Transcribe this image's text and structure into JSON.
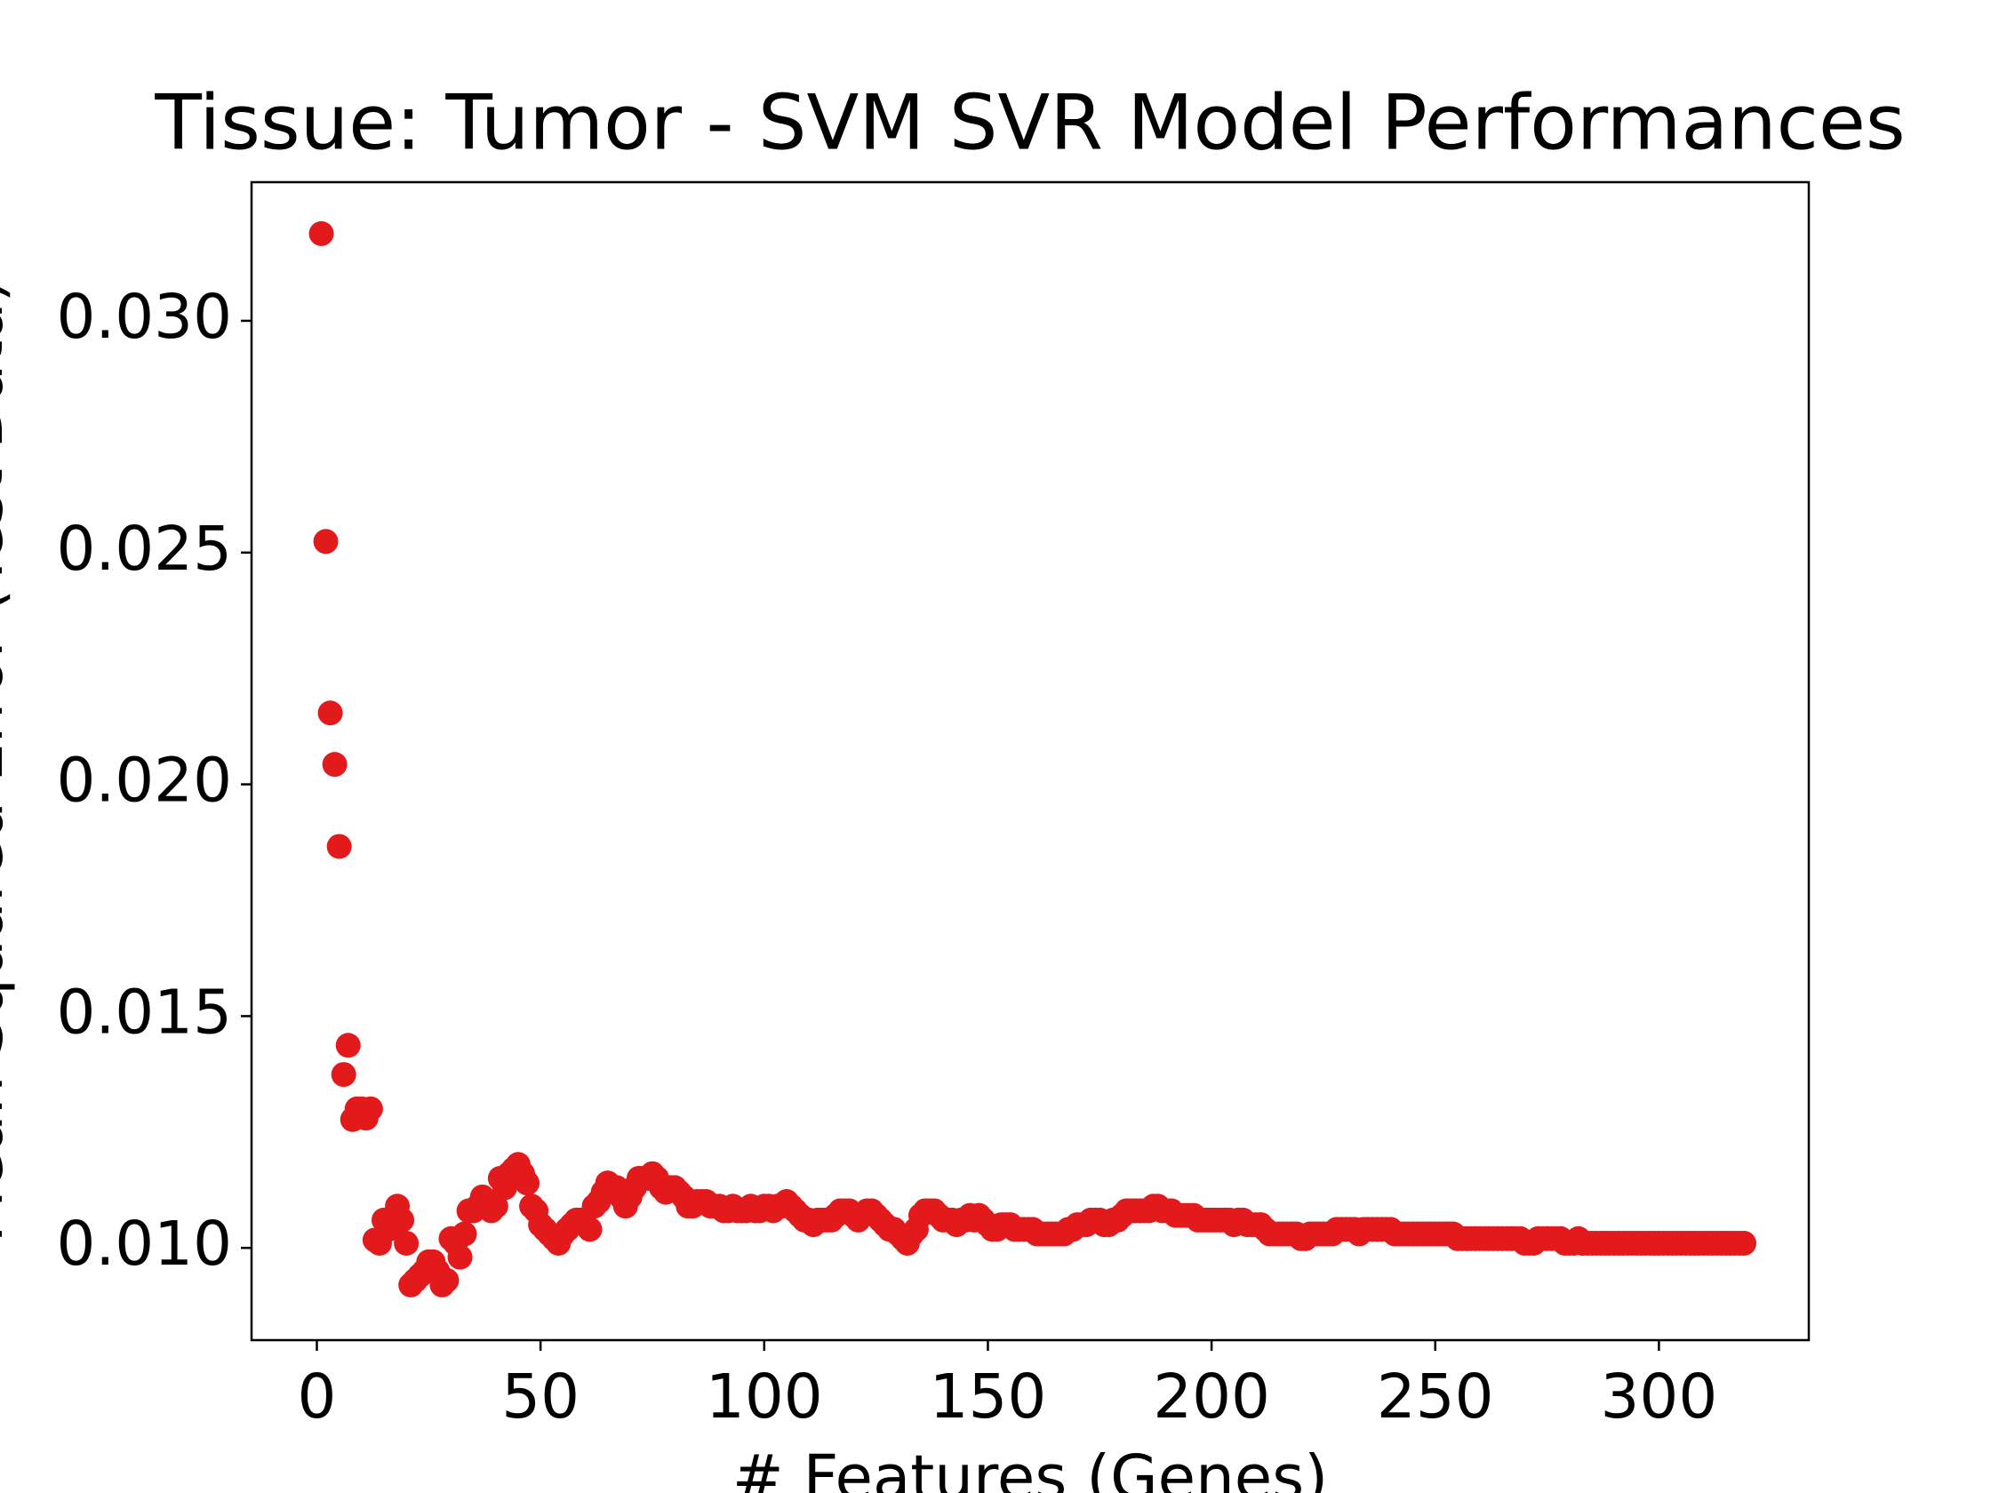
{
  "chart_data": {
    "type": "scatter",
    "title": "Tissue: Tumor - SVM SVR Model Performances",
    "x_label": "# Features (Genes)",
    "y_label": "Mean Squared Error (Test Data)",
    "color": "#e31a1c",
    "xlim": [
      -14.6,
      333.5
    ],
    "ylim": [
      0.00801,
      0.03299
    ],
    "xticks": [
      0,
      50,
      100,
      150,
      200,
      250,
      300
    ],
    "yticks": [
      {
        "value": 0.01,
        "label": "0.010"
      },
      {
        "value": 0.015,
        "label": "0.015"
      },
      {
        "value": 0.02,
        "label": "0.020"
      },
      {
        "value": 0.025,
        "label": "0.025"
      },
      {
        "value": 0.03,
        "label": "0.030"
      }
    ],
    "x": [
      1,
      2,
      3,
      4,
      5,
      6,
      7,
      8,
      9,
      10,
      11,
      12,
      13,
      14,
      15,
      16,
      17,
      18,
      19,
      20,
      21,
      22,
      23,
      24,
      25,
      26,
      27,
      28,
      29,
      30,
      31,
      32,
      33,
      34,
      35,
      36,
      37,
      38,
      39,
      40,
      41,
      42,
      43,
      44,
      45,
      46,
      47,
      48,
      49,
      50,
      51,
      52,
      53,
      54,
      55,
      56,
      57,
      58,
      59,
      60,
      61,
      62,
      63,
      64,
      65,
      66,
      67,
      68,
      69,
      70,
      71,
      72,
      73,
      74,
      75,
      76,
      77,
      78,
      79,
      80,
      81,
      82,
      83,
      84,
      85,
      86,
      87,
      88,
      89,
      90,
      91,
      92,
      93,
      94,
      95,
      96,
      97,
      98,
      99,
      100,
      101,
      102,
      103,
      104,
      105,
      106,
      107,
      108,
      109,
      110,
      111,
      112,
      113,
      114,
      115,
      116,
      117,
      118,
      119,
      120,
      121,
      122,
      123,
      124,
      125,
      126,
      127,
      128,
      129,
      130,
      131,
      132,
      133,
      134,
      135,
      136,
      137,
      138,
      139,
      140,
      141,
      142,
      143,
      144,
      145,
      146,
      147,
      148,
      149,
      150,
      151,
      152,
      153,
      154,
      155,
      156,
      157,
      158,
      159,
      160,
      161,
      162,
      163,
      164,
      165,
      166,
      167,
      168,
      169,
      170,
      171,
      172,
      173,
      174,
      175,
      176,
      177,
      178,
      179,
      180,
      181,
      182,
      183,
      184,
      185,
      186,
      187,
      188,
      189,
      190,
      191,
      192,
      193,
      194,
      195,
      196,
      197,
      198,
      199,
      200,
      201,
      202,
      203,
      204,
      205,
      206,
      207,
      208,
      209,
      210,
      211,
      212,
      213,
      214,
      215,
      216,
      217,
      218,
      219,
      220,
      221,
      222,
      223,
      224,
      225,
      226,
      227,
      228,
      229,
      230,
      231,
      232,
      233,
      234,
      235,
      236,
      237,
      238,
      239,
      240,
      241,
      242,
      243,
      244,
      245,
      246,
      247,
      248,
      249,
      250,
      251,
      252,
      253,
      254,
      255,
      256,
      257,
      258,
      259,
      260,
      261,
      262,
      263,
      264,
      265,
      266,
      267,
      268,
      269,
      270,
      271,
      272,
      273,
      274,
      275,
      276,
      277,
      278,
      279,
      280,
      281,
      282,
      283,
      284,
      285,
      286,
      287,
      288,
      289,
      290,
      291,
      292,
      293,
      294,
      295,
      296,
      297,
      298,
      299,
      300,
      301,
      302,
      303,
      304,
      305,
      306,
      307,
      308,
      309,
      310,
      311,
      312,
      313,
      314,
      315,
      316,
      317,
      318,
      319
    ],
    "values": [
      0.03188,
      0.02524,
      0.02154,
      0.02043,
      0.01866,
      0.01374,
      0.01437,
      0.01277,
      0.013,
      0.013,
      0.0128,
      0.013,
      0.01017,
      0.0101,
      0.0106,
      0.0104,
      0.0106,
      0.0109,
      0.0106,
      0.0101,
      0.0092,
      0.0093,
      0.0094,
      0.0095,
      0.0097,
      0.0097,
      0.0095,
      0.0092,
      0.0093,
      0.0102,
      0.0101,
      0.0098,
      0.0103,
      0.0108,
      0.0108,
      0.0109,
      0.0111,
      0.0109,
      0.0108,
      0.0109,
      0.0115,
      0.0113,
      0.0116,
      0.0117,
      0.0118,
      0.0116,
      0.0114,
      0.0109,
      0.0108,
      0.0105,
      0.0104,
      0.0103,
      0.0102,
      0.0101,
      0.0103,
      0.0104,
      0.0105,
      0.0106,
      0.0106,
      0.0105,
      0.0104,
      0.0109,
      0.011,
      0.0112,
      0.0114,
      0.0113,
      0.0113,
      0.0111,
      0.0109,
      0.0111,
      0.0113,
      0.0115,
      0.0115,
      0.0115,
      0.0116,
      0.0115,
      0.0113,
      0.0112,
      0.0113,
      0.0113,
      0.0112,
      0.0111,
      0.0109,
      0.0109,
      0.011,
      0.011,
      0.011,
      0.0109,
      0.0109,
      0.0109,
      0.0108,
      0.0108,
      0.0109,
      0.0108,
      0.0108,
      0.0108,
      0.0109,
      0.0108,
      0.0108,
      0.0109,
      0.0109,
      0.0108,
      0.0109,
      0.0109,
      0.011,
      0.0109,
      0.0108,
      0.0107,
      0.0106,
      0.0106,
      0.0105,
      0.0106,
      0.0106,
      0.0106,
      0.0106,
      0.0107,
      0.0108,
      0.0108,
      0.0108,
      0.0107,
      0.0106,
      0.0107,
      0.0108,
      0.0108,
      0.0107,
      0.0106,
      0.0105,
      0.0104,
      0.0104,
      0.0103,
      0.0102,
      0.0101,
      0.0103,
      0.0104,
      0.0107,
      0.0108,
      0.0108,
      0.0108,
      0.0107,
      0.0106,
      0.0106,
      0.0106,
      0.0105,
      0.0106,
      0.0106,
      0.0107,
      0.0106,
      0.0107,
      0.0106,
      0.0105,
      0.0104,
      0.0104,
      0.0105,
      0.0105,
      0.0105,
      0.0104,
      0.0104,
      0.0104,
      0.0104,
      0.0104,
      0.0103,
      0.0103,
      0.0103,
      0.0103,
      0.0103,
      0.0103,
      0.0103,
      0.0104,
      0.0104,
      0.0105,
      0.0105,
      0.0105,
      0.0106,
      0.0106,
      0.0106,
      0.0105,
      0.0105,
      0.0106,
      0.0106,
      0.0107,
      0.0108,
      0.0108,
      0.0108,
      0.0108,
      0.0108,
      0.0108,
      0.0109,
      0.0109,
      0.0108,
      0.0108,
      0.0108,
      0.0107,
      0.0107,
      0.0107,
      0.0107,
      0.0107,
      0.0106,
      0.0106,
      0.0106,
      0.0106,
      0.0106,
      0.0106,
      0.0106,
      0.0106,
      0.0105,
      0.0106,
      0.0106,
      0.0105,
      0.0105,
      0.0105,
      0.0105,
      0.0104,
      0.0103,
      0.0103,
      0.0103,
      0.0103,
      0.0103,
      0.0103,
      0.0103,
      0.0102,
      0.0102,
      0.0103,
      0.0103,
      0.0103,
      0.0103,
      0.0103,
      0.0103,
      0.0104,
      0.0104,
      0.0104,
      0.0104,
      0.0104,
      0.0103,
      0.0104,
      0.0104,
      0.0104,
      0.0104,
      0.0104,
      0.0104,
      0.0104,
      0.0103,
      0.0103,
      0.0103,
      0.0103,
      0.0103,
      0.0103,
      0.0103,
      0.0103,
      0.0103,
      0.0103,
      0.0103,
      0.0103,
      0.0103,
      0.0103,
      0.0102,
      0.0102,
      0.0102,
      0.0102,
      0.0102,
      0.0102,
      0.0102,
      0.0102,
      0.0102,
      0.0102,
      0.0102,
      0.0102,
      0.0102,
      0.0102,
      0.0102,
      0.0101,
      0.0101,
      0.0101,
      0.0102,
      0.0102,
      0.0102,
      0.0102,
      0.0102,
      0.0102,
      0.0101,
      0.0101,
      0.0101,
      0.0102,
      0.0101,
      0.0101,
      0.0101,
      0.0101,
      0.0101,
      0.0101,
      0.0101,
      0.0101,
      0.0101,
      0.0101,
      0.0101,
      0.0101,
      0.0101,
      0.0101,
      0.0101,
      0.0101,
      0.0101,
      0.0101,
      0.0101,
      0.0101,
      0.0101,
      0.0101,
      0.0101,
      0.0101,
      0.0101,
      0.0101,
      0.0101,
      0.0101,
      0.0101,
      0.0101,
      0.0101,
      0.0101,
      0.0101,
      0.0101,
      0.0101,
      0.0101,
      0.0101
    ]
  }
}
